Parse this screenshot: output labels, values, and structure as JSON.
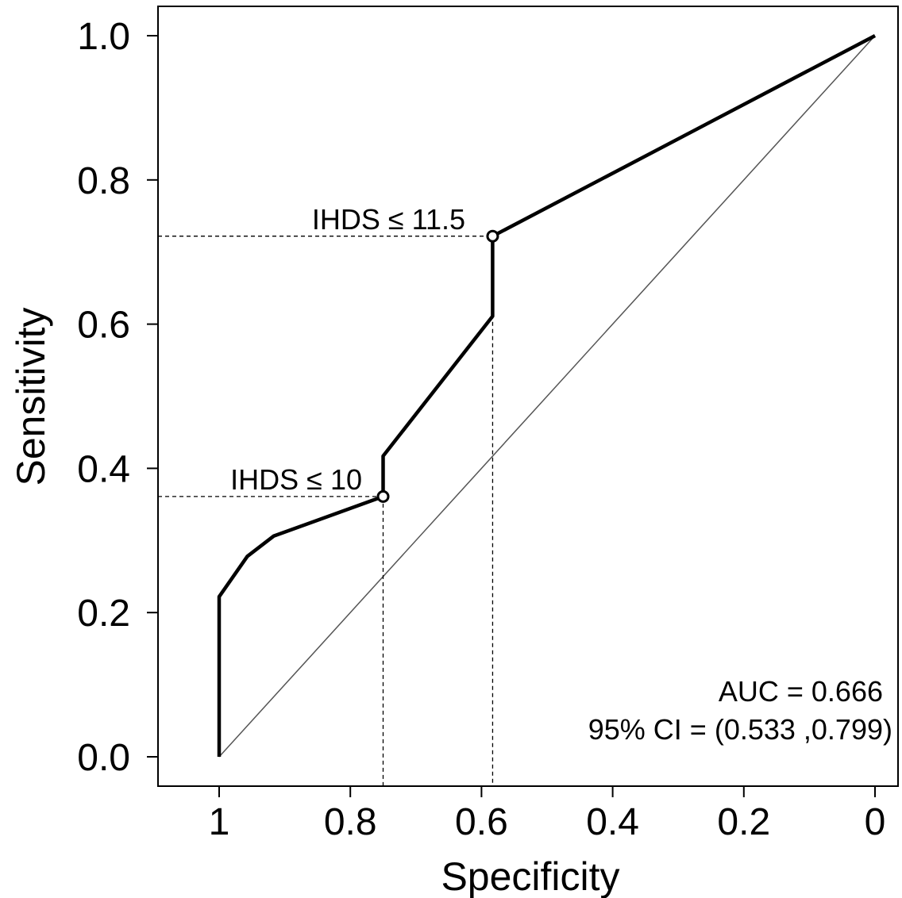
{
  "chart_data": {
    "type": "line",
    "title": "",
    "xlabel": "Specificity",
    "ylabel": "Sensitivity",
    "x_reversed": true,
    "xlim": [
      1,
      0
    ],
    "ylim": [
      0,
      1
    ],
    "x_ticks": [
      1,
      0.8,
      0.6,
      0.4,
      0.2,
      0
    ],
    "x_tick_labels": [
      "1",
      "0.8",
      "0.6",
      "0.4",
      "0.2",
      "0"
    ],
    "y_ticks": [
      0,
      0.2,
      0.4,
      0.6,
      0.8,
      1
    ],
    "y_tick_labels": [
      "0.0",
      "0.2",
      "0.4",
      "0.6",
      "0.8",
      "1.0"
    ],
    "grid": false,
    "series": [
      {
        "name": "",
        "style": "roc-curve",
        "color": "#000000",
        "points": [
          {
            "x": 1.0,
            "y": 0.0
          },
          {
            "x": 1.0,
            "y": 0.222
          },
          {
            "x": 0.957,
            "y": 0.278
          },
          {
            "x": 0.917,
            "y": 0.306
          },
          {
            "x": 0.75,
            "y": 0.361
          },
          {
            "x": 0.75,
            "y": 0.417
          },
          {
            "x": 0.583,
            "y": 0.611
          },
          {
            "x": 0.583,
            "y": 0.722
          },
          {
            "x": 0.0,
            "y": 1.0
          }
        ]
      },
      {
        "name": "",
        "style": "reference-diagonal",
        "color": "#555555",
        "points": [
          {
            "x": 1.0,
            "y": 0.0
          },
          {
            "x": 0.0,
            "y": 1.0
          }
        ]
      }
    ],
    "thresholds": [
      {
        "label": "IHDS ≤ 10",
        "x": 0.75,
        "y": 0.361
      },
      {
        "label": "IHDS ≤ 11.5",
        "x": 0.583,
        "y": 0.722
      }
    ],
    "annotations": {
      "auc": "AUC = 0.666",
      "ci": "95% CI = (0.533 ,0.799)"
    }
  }
}
